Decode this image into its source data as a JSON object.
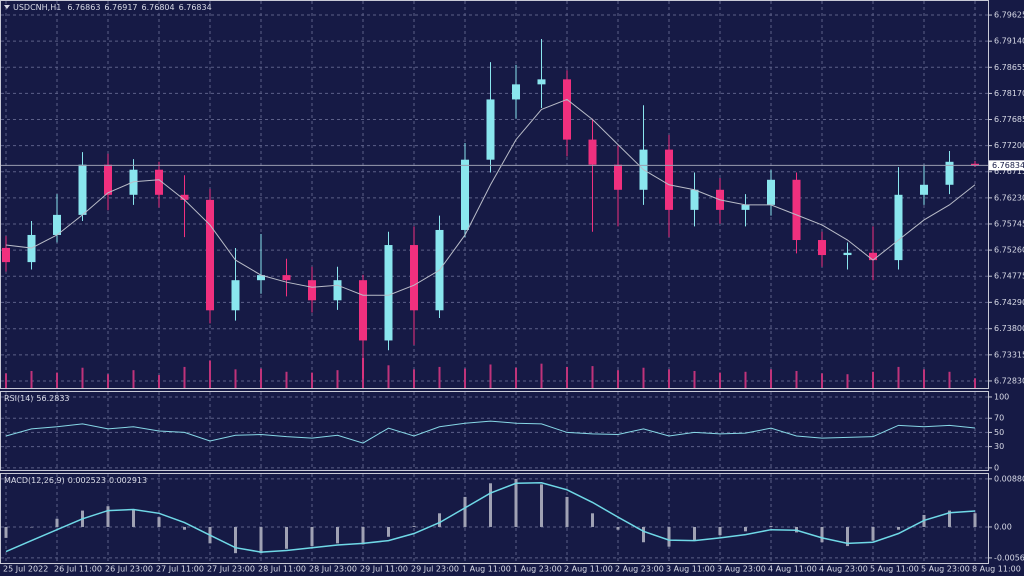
{
  "chart_data": {
    "type": "candlestick",
    "title": "USDCNH,H1",
    "categories": [
      "25 Jul 2022",
      null,
      "26 Jul 11:00",
      null,
      "26 Jul 23:00",
      null,
      "27 Jul 11:00",
      null,
      "27 Jul 23:00",
      null,
      "28 Jul 11:00",
      null,
      "28 Jul 23:00",
      null,
      "29 Jul 11:00",
      null,
      "29 Jul 23:00",
      null,
      "1 Aug 11:00",
      null,
      "1 Aug 23:00",
      null,
      "2 Aug 11:00",
      null,
      "2 Aug 23:00",
      null,
      "3 Aug 11:00",
      null,
      "3 Aug 23:00",
      null,
      "4 Aug 11:00",
      null,
      "4 Aug 23:00",
      null,
      "5 Aug 11:00",
      null,
      "5 Aug 23:00",
      null,
      "8 Aug 11:00"
    ],
    "open": [
      6.753,
      6.75037,
      6.75541,
      6.75914,
      6.76846,
      6.76287,
      6.76753,
      6.76287,
      6.76193,
      6.74142,
      6.74701,
      6.74795,
      6.74701,
      6.74328,
      6.74701,
      6.73582,
      6.75354,
      6.74142,
      6.75634,
      6.76939,
      6.78058,
      6.78338,
      6.78431,
      6.77312,
      6.76846,
      6.7638,
      6.77126,
      6.76007,
      6.7638,
      6.76007,
      6.761,
      6.76566,
      6.75447,
      6.75168,
      6.7521,
      6.75074,
      6.76287,
      6.76473,
      6.76863
    ],
    "high": [
      6.7552,
      6.758,
      6.763,
      6.7708,
      6.7705,
      6.7695,
      6.769,
      6.7665,
      6.764,
      6.753,
      6.7556,
      6.751,
      6.7495,
      6.7495,
      6.748,
      6.756,
      6.757,
      6.759,
      6.7725,
      6.7875,
      6.787,
      6.7918,
      6.786,
      6.777,
      6.772,
      6.7795,
      6.774,
      6.767,
      6.766,
      6.763,
      6.7675,
      6.767,
      6.756,
      6.754,
      6.757,
      6.768,
      6.7685,
      6.771,
      6.76917
    ],
    "low": [
      6.7486,
      6.749,
      6.754,
      6.758,
      6.76,
      6.761,
      6.7605,
      6.755,
      6.739,
      6.7395,
      6.7445,
      6.744,
      6.741,
      6.7415,
      6.72874,
      6.734,
      6.735,
      6.74,
      6.755,
      6.767,
      6.777,
      6.779,
      6.77,
      6.756,
      6.757,
      6.761,
      6.755,
      6.757,
      6.7575,
      6.757,
      6.759,
      6.752,
      6.7495,
      6.749,
      6.747,
      6.749,
      6.761,
      6.763,
      6.76804
    ],
    "close": [
      6.75037,
      6.75541,
      6.75914,
      6.76846,
      6.76287,
      6.76753,
      6.76287,
      6.76193,
      6.74142,
      6.74701,
      6.74795,
      6.74701,
      6.74328,
      6.74701,
      6.73582,
      6.75354,
      6.74142,
      6.75634,
      6.76939,
      6.78058,
      6.78338,
      6.78431,
      6.77312,
      6.76846,
      6.7638,
      6.77126,
      6.76007,
      6.7638,
      6.76007,
      6.761,
      6.76566,
      6.75447,
      6.75168,
      6.7521,
      6.75074,
      6.76287,
      6.76473,
      6.769,
      6.76834
    ],
    "up_color": "#8ae6ee",
    "down_color": "#f0307e",
    "ylim": [
      6.72699,
      6.79886
    ],
    "yticks": [
      {
        "value": 6.79625,
        "label": "6.79625"
      },
      {
        "value": 6.7914,
        "label": "6.79140"
      },
      {
        "value": 6.78655,
        "label": "6.78655"
      },
      {
        "value": 6.7817,
        "label": "6.78170"
      },
      {
        "value": 6.77685,
        "label": "6.77685"
      },
      {
        "value": 6.772,
        "label": "6.77200"
      },
      {
        "value": 6.76715,
        "label": "6.76715"
      },
      {
        "value": 6.7623,
        "label": "6.76230"
      },
      {
        "value": 6.75745,
        "label": "6.75745"
      },
      {
        "value": 6.7526,
        "label": "6.75260"
      },
      {
        "value": 6.74775,
        "label": "6.74775"
      },
      {
        "value": 6.7429,
        "label": "6.74290"
      },
      {
        "value": 6.738,
        "label": "6.73800"
      },
      {
        "value": 6.73315,
        "label": "6.73315"
      },
      {
        "value": 6.7283,
        "label": "6.72830"
      }
    ],
    "grid": true,
    "moving_average": {
      "color": "#b9bcc8",
      "values": [
        6.75354,
        6.75298,
        6.75541,
        6.75914,
        6.76324,
        6.76529,
        6.76566,
        6.76193,
        6.75727,
        6.75074,
        6.74795,
        6.74664,
        6.74571,
        6.74608,
        6.74422,
        6.74422,
        6.74608,
        6.74888,
        6.75541,
        6.76473,
        6.77312,
        6.77872,
        6.78058,
        6.77686,
        6.77219,
        6.76753,
        6.76473,
        6.7638,
        6.76193,
        6.761,
        6.761,
        6.75914,
        6.75727,
        6.75447,
        6.75074,
        6.75447,
        6.7582,
        6.761,
        6.76473
      ]
    },
    "volume": {
      "color": "#c0337a",
      "values": [
        1800,
        2100,
        1900,
        2500,
        1700,
        2200,
        1600,
        2600,
        3400,
        2300,
        2400,
        2000,
        1900,
        2200,
        3700,
        2800,
        2300,
        2600,
        2400,
        2900,
        2500,
        3000,
        2600,
        2700,
        2200,
        2500,
        2300,
        2100,
        1900,
        2000,
        2300,
        2100,
        1800,
        1700,
        2000,
        2600,
        2300,
        2000,
        1200
      ]
    },
    "rsi": {
      "title": "RSI(14)",
      "color": "#87d7e6",
      "ylim": [
        -3,
        107
      ],
      "yticks": [
        100,
        70,
        50,
        30,
        0
      ],
      "values": [
        45,
        55,
        58,
        62,
        55,
        58,
        52,
        50,
        38,
        46,
        47,
        44,
        42,
        46,
        35,
        56,
        45,
        58,
        63,
        66,
        63,
        62,
        50,
        48,
        47,
        55,
        45,
        50,
        48,
        49,
        56,
        45,
        42,
        43,
        44,
        60,
        58,
        60,
        56.2833
      ]
    },
    "macd": {
      "title": "MACD(12,26,9)",
      "ylim": [
        -0.0066,
        0.0097
      ],
      "yticks": [
        0.008807,
        {
          "value": 0,
          "label": "0.00"
        },
        -0.005668
      ],
      "histogram": {
        "color": "#a0a2b4",
        "values": [
          -0.002,
          0,
          0.0015,
          0.003,
          0.0038,
          0.0032,
          0.0018,
          -0.0005,
          -0.003,
          -0.0048,
          -0.0048,
          -0.004,
          -0.0035,
          -0.003,
          -0.0032,
          -0.0018,
          0.0002,
          0.0025,
          0.0055,
          0.008,
          0.0088,
          0.0078,
          0.0055,
          0.0025,
          -0.0005,
          -0.0028,
          -0.0036,
          -0.0025,
          -0.0015,
          -0.0008,
          0.0002,
          -0.001,
          -0.0028,
          -0.0035,
          -0.0025,
          -0.0005,
          0.0022,
          0.003,
          0.002523
        ]
      },
      "signal": {
        "color": "#6fd8e6",
        "values": [
          -0.0045,
          -0.0025,
          -0.0005,
          0.0015,
          0.003,
          0.0032,
          0.0025,
          0.0008,
          -0.0015,
          -0.0038,
          -0.0046,
          -0.0043,
          -0.0038,
          -0.0033,
          -0.003,
          -0.0025,
          -0.0012,
          0.0008,
          0.0035,
          0.0062,
          0.008,
          0.0081,
          0.0068,
          0.0045,
          0.0018,
          -0.0008,
          -0.0024,
          -0.0025,
          -0.002,
          -0.0014,
          -0.0005,
          -0.0006,
          -0.002,
          -0.003,
          -0.0028,
          -0.0012,
          0.0012,
          0.0026,
          0.002913
        ]
      }
    }
  }
}
